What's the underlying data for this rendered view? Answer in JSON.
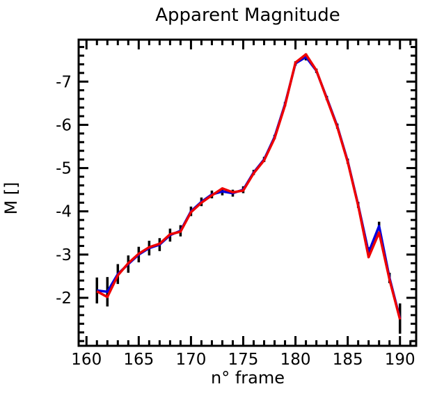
{
  "chart_data": {
    "type": "line",
    "title": "Apparent Magnitude",
    "xlabel": "n° frame",
    "ylabel": "M []",
    "grid": false,
    "legend": "none",
    "xlim": [
      159.25,
      191.55
    ],
    "ylim_bottom_to_top": [
      -0.89,
      -7.97
    ],
    "xticks_major": [
      160,
      165,
      170,
      175,
      180,
      185,
      190
    ],
    "xticklabels": [
      "160",
      "165",
      "170",
      "175",
      "180",
      "185",
      "190"
    ],
    "xticks_minor_step": 1,
    "yticks_major": [
      -7,
      -6,
      -5,
      -4,
      -3,
      -2
    ],
    "yticklabels": [
      "-7",
      "-6",
      "-5",
      "-4",
      "-3",
      "-2"
    ],
    "yticks_minor_step": 0.2,
    "x": [
      161,
      162,
      163,
      164,
      165,
      166,
      167,
      168,
      169,
      170,
      171,
      172,
      173,
      174,
      175,
      176,
      177,
      178,
      179,
      180,
      181,
      182,
      183,
      184,
      185,
      186,
      187,
      188,
      189,
      190
    ],
    "series": [
      {
        "name": "blue-curve",
        "color": "#0000dd",
        "values": [
          -2.17,
          -2.14,
          -2.55,
          -2.78,
          -3.0,
          -3.15,
          -3.23,
          -3.45,
          -3.55,
          -4.0,
          -4.22,
          -4.39,
          -4.46,
          -4.42,
          -4.5,
          -4.9,
          -5.2,
          -5.72,
          -6.48,
          -7.42,
          -7.57,
          -7.25,
          -6.62,
          -5.97,
          -5.16,
          -4.15,
          -3.05,
          -3.66,
          -2.46,
          -1.52
        ]
      },
      {
        "name": "red-curve",
        "color": "#ee0000",
        "values": [
          -2.15,
          -2.02,
          -2.52,
          -2.8,
          -3.02,
          -3.17,
          -3.25,
          -3.47,
          -3.53,
          -3.98,
          -4.2,
          -4.37,
          -4.53,
          -4.44,
          -4.48,
          -4.88,
          -5.18,
          -5.69,
          -6.45,
          -7.44,
          -7.63,
          -7.26,
          -6.6,
          -5.95,
          -5.14,
          -4.13,
          -2.94,
          -3.51,
          -2.42,
          -1.5
        ]
      }
    ],
    "error_bars": {
      "color": "#000000",
      "centered_on": "blue-curve",
      "plus_minus": [
        0.3,
        0.34,
        0.23,
        0.2,
        0.18,
        0.17,
        0.15,
        0.15,
        0.13,
        0.11,
        0.1,
        0.09,
        0.09,
        0.08,
        0.08,
        0.06,
        0.06,
        0.05,
        0.05,
        0.05,
        0.08,
        0.05,
        0.05,
        0.06,
        0.06,
        0.07,
        0.12,
        0.1,
        0.12,
        0.35
      ]
    }
  }
}
